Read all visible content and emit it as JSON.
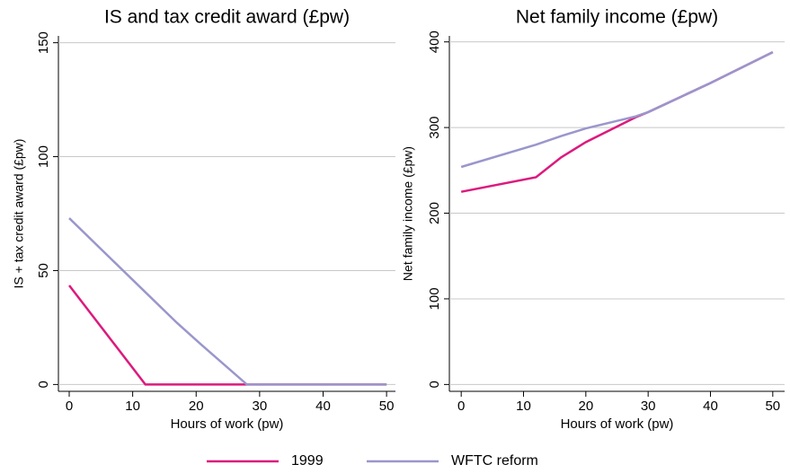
{
  "chart_data": [
    {
      "type": "line",
      "title": "IS and tax credit award (£pw)",
      "x_label": "Hours of work (pw)",
      "y_label": "IS + tax credit award (£pw)",
      "x": [
        0,
        12,
        17,
        21,
        28,
        50
      ],
      "series": [
        {
          "name": "1999",
          "color": "#dc1a7d",
          "values": [
            43.5,
            0,
            0,
            0,
            0,
            0
          ]
        },
        {
          "name": "WFTC reform",
          "color": "#9a96cc",
          "values": [
            73,
            40.5,
            27,
            17,
            0,
            0
          ]
        }
      ],
      "xlim": [
        -1.7,
        51.4
      ],
      "ylim": [
        -3,
        153
      ],
      "xticks": [
        0,
        10,
        20,
        30,
        40,
        50
      ],
      "yticks": [
        0,
        50,
        100,
        150
      ],
      "grid": true
    },
    {
      "type": "line",
      "title": "Net family income (£pw)",
      "x_label": "Hours of work (pw)",
      "y_label": "Net family income (£pw)",
      "x": [
        0,
        12,
        16,
        20,
        28,
        30,
        40,
        50
      ],
      "series": [
        {
          "name": "1999",
          "color": "#dc1a7d",
          "values": [
            225,
            242,
            265,
            283,
            312,
            318,
            352,
            388
          ]
        },
        {
          "name": "WFTC reform",
          "color": "#9a96cc",
          "values": [
            254,
            280,
            290,
            299,
            313,
            318,
            352,
            388
          ]
        }
      ],
      "xlim": [
        -1.9,
        51.9
      ],
      "ylim": [
        -8,
        407
      ],
      "xticks": [
        0,
        10,
        20,
        30,
        40,
        50
      ],
      "yticks": [
        0,
        100,
        200,
        300,
        400
      ],
      "grid": true
    }
  ]
}
